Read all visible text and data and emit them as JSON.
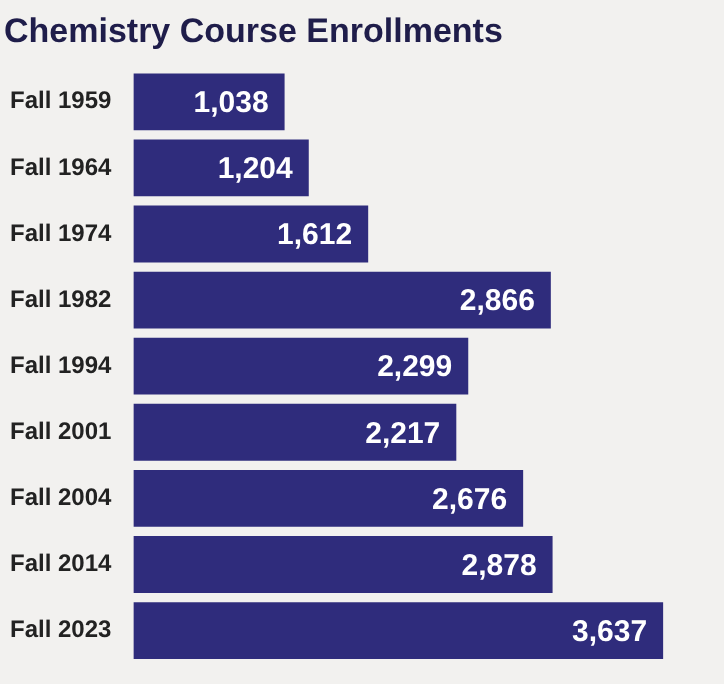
{
  "chart_data": {
    "type": "bar",
    "orientation": "horizontal",
    "title": "Chemistry Course Enrollments",
    "categories": [
      "Fall 1959",
      "Fall 1964",
      "Fall 1974",
      "Fall 1982",
      "Fall 1994",
      "Fall 2001",
      "Fall 2004",
      "Fall 2014",
      "Fall 2023"
    ],
    "values": [
      1038,
      1204,
      1612,
      2866,
      2299,
      2217,
      2676,
      2878,
      3637
    ],
    "value_labels": [
      "1,038",
      "1,204",
      "1,612",
      "2,866",
      "2,299",
      "2,217",
      "2,676",
      "2,878",
      "3,637"
    ],
    "color": "#2f2c7c",
    "legend": false
  }
}
